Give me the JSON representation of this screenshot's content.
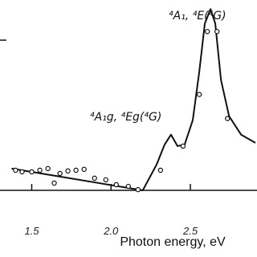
{
  "chart_data": {
    "type": "line",
    "x_label": "Photon energy, eV",
    "annotations": [
      "⁴A₁, ⁴E(⁴G)",
      "⁴A₁g, ⁴Eg(⁴G)"
    ],
    "xlim": [
      1.3,
      2.92
    ],
    "ylim": [
      0,
      1.05
    ],
    "xticks": [
      1.5,
      {
        "value": 2,
        "label": "2.0"
      },
      2.5
    ],
    "color": "#111111",
    "series": [
      {
        "kind": "line",
        "x": [
          1.373,
          2.2,
          2.287,
          2.338,
          2.378,
          2.419,
          2.464,
          2.515,
          2.556,
          2.591,
          2.627,
          2.657,
          2.693,
          2.744,
          2.82,
          2.91
        ],
        "values": [
          0.12,
          0,
          0.142,
          0.253,
          0.307,
          0.244,
          0.253,
          0.387,
          0.653,
          0.92,
          1.0,
          0.92,
          0.609,
          0.409,
          0.307,
          0.262
        ]
      },
      {
        "kind": "scatter",
        "x": [
          1.398,
          1.439,
          1.5,
          1.551,
          1.602,
          1.642,
          1.678,
          1.728,
          1.779,
          1.83,
          1.896,
          1.967,
          2.033,
          2.109,
          2.17,
          2.312,
          2.454,
          2.556,
          2.607,
          2.668,
          2.734
        ],
        "values": [
          0.111,
          0.102,
          0.102,
          0.111,
          0.12,
          0.04,
          0.093,
          0.107,
          0.111,
          0.116,
          0.067,
          0.058,
          0.031,
          0.022,
          0.004,
          0.111,
          0.244,
          0.529,
          0.876,
          0.876,
          0.396
        ]
      }
    ]
  }
}
